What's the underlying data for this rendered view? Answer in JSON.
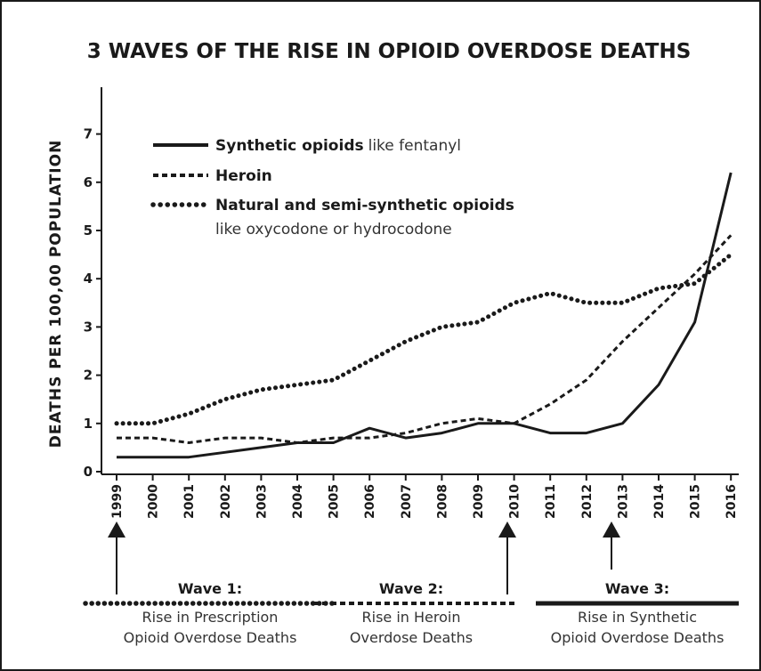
{
  "chart_data": {
    "type": "line",
    "title": "3 WAVES OF THE RISE IN OPIOID OVERDOSE DEATHS",
    "ylabel": "DEATHS PER 100,00 POPULATION",
    "xlabel": "",
    "ylim": [
      0,
      7
    ],
    "yticks": [
      "0",
      "1",
      "2",
      "3",
      "4",
      "5",
      "6",
      "7"
    ],
    "categories": [
      "1999",
      "2000",
      "2001",
      "2002",
      "2003",
      "2004",
      "2005",
      "2006",
      "2007",
      "2008",
      "2009",
      "2010",
      "2011",
      "2012",
      "2013",
      "2014",
      "2015",
      "2016"
    ],
    "series": [
      {
        "name": "Synthetic opioids",
        "suffix": "like fentanyl",
        "style": "solid",
        "values": [
          0.3,
          0.3,
          0.3,
          0.4,
          0.5,
          0.6,
          0.6,
          0.9,
          0.7,
          0.8,
          1.0,
          1.0,
          0.8,
          0.8,
          1.0,
          1.8,
          3.1,
          6.2
        ]
      },
      {
        "name": "Heroin",
        "suffix": "",
        "style": "dashed",
        "values": [
          0.7,
          0.7,
          0.6,
          0.7,
          0.7,
          0.6,
          0.7,
          0.7,
          0.8,
          1.0,
          1.1,
          1.0,
          1.4,
          1.9,
          2.7,
          3.4,
          4.1,
          4.9
        ]
      },
      {
        "name": "Natural and semi-synthetic opioids",
        "suffix": "like oxycodone or hydrocodone",
        "style": "dotted",
        "values": [
          1.0,
          1.0,
          1.2,
          1.5,
          1.7,
          1.8,
          1.9,
          2.3,
          2.7,
          3.0,
          3.1,
          3.5,
          3.7,
          3.5,
          3.5,
          3.8,
          3.9,
          4.5
        ]
      }
    ],
    "legend_position": "top-left",
    "grid": false
  },
  "waves": [
    {
      "title": "Wave 1:",
      "line1": "Rise in Prescription",
      "line2": "Opioid Overdose Deaths",
      "style": "dotted",
      "year": "1999"
    },
    {
      "title": "Wave 2:",
      "line1": "Rise in Heroin",
      "line2": "Overdose Deaths",
      "style": "dashed",
      "year": "2010"
    },
    {
      "title": "Wave 3:",
      "line1": "Rise in Synthetic",
      "line2": "Opioid Overdose Deaths",
      "style": "solid",
      "year": "2013"
    }
  ],
  "colors": {
    "ink": "#1a1a1a",
    "text_light": "#333333",
    "background": "#ffffff"
  }
}
